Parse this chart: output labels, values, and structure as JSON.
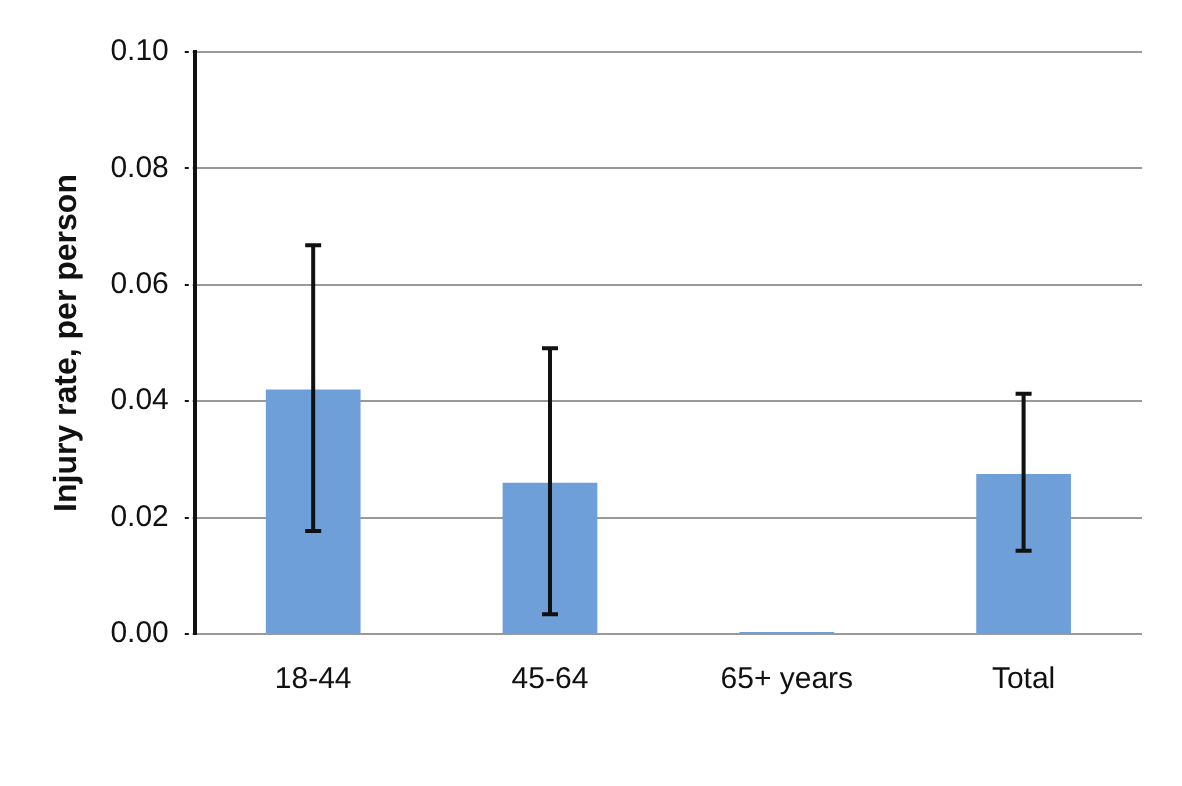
{
  "chart_data": {
    "type": "bar",
    "ylabel": "Injury rate, per person",
    "categories": [
      "18-44",
      "45-64",
      "65+ years",
      "Total"
    ],
    "values": [
      0.042,
      0.026,
      0,
      0.0275
    ],
    "errors": [
      [
        0.0177,
        0.0668
      ],
      [
        0.0034,
        0.0491
      ],
      null,
      [
        0.0143,
        0.0413
      ]
    ],
    "color": "#6f9fd8",
    "ylim": [
      0,
      0.1
    ],
    "yticks": [
      {
        "value": 0,
        "label": "0.00"
      },
      {
        "value": 0.02,
        "label": "0.02"
      },
      {
        "value": 0.04,
        "label": "0.04"
      },
      {
        "value": 0.06,
        "label": "0.06"
      },
      {
        "value": 0.08,
        "label": "0.08"
      },
      {
        "value": 0.1,
        "label": "0.10"
      }
    ],
    "grid": "y"
  }
}
